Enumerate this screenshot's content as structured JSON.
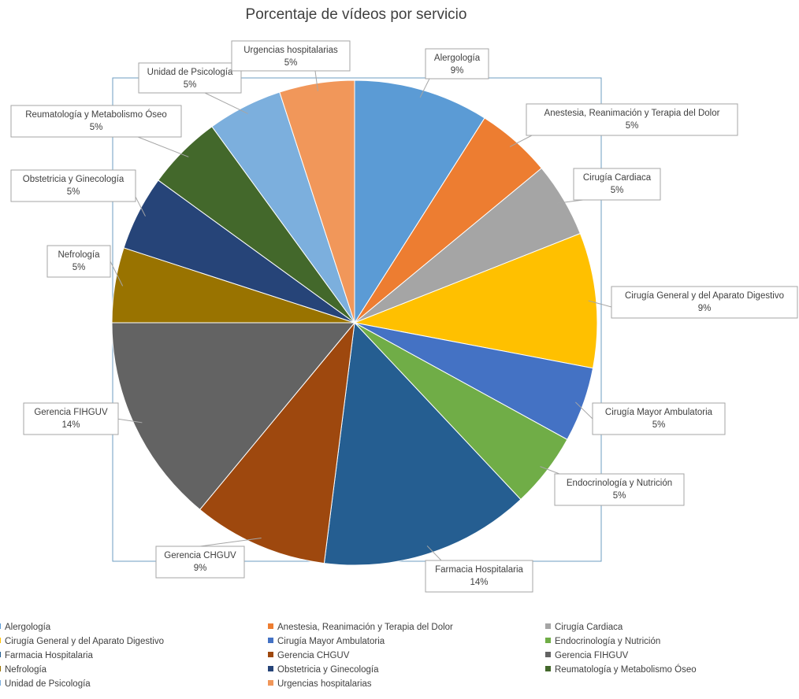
{
  "chart_data": {
    "type": "pie",
    "title": "Porcentaje de vídeos por servicio",
    "slices": [
      {
        "label": "Alergología",
        "percent_label": "9%",
        "value": 9,
        "color": "#5b9bd5"
      },
      {
        "label": "Anestesia, Reanimación y Terapia del Dolor",
        "percent_label": "5%",
        "value": 5,
        "color": "#ed7d31"
      },
      {
        "label": "Cirugía Cardiaca",
        "percent_label": "5%",
        "value": 5,
        "color": "#a5a5a5"
      },
      {
        "label": "Cirugía General y del Aparato Digestivo",
        "percent_label": "9%",
        "value": 9,
        "color": "#ffc000"
      },
      {
        "label": "Cirugía Mayor Ambulatoria",
        "percent_label": "5%",
        "value": 5,
        "color": "#4472c4"
      },
      {
        "label": "Endocrinología y Nutrición",
        "percent_label": "5%",
        "value": 5,
        "color": "#70ad47"
      },
      {
        "label": "Farmacia Hospitalaria",
        "percent_label": "14%",
        "value": 14,
        "color": "#255e91"
      },
      {
        "label": "Gerencia CHGUV",
        "percent_label": "9%",
        "value": 9,
        "color": "#9e480e"
      },
      {
        "label": "Gerencia FIHGUV",
        "percent_label": "14%",
        "value": 14,
        "color": "#636363"
      },
      {
        "label": "Nefrología",
        "percent_label": "5%",
        "value": 5,
        "color": "#997300"
      },
      {
        "label": "Obstetricia y Ginecología",
        "percent_label": "5%",
        "value": 5,
        "color": "#264478"
      },
      {
        "label": "Reumatología y Metabolismo Óseo",
        "percent_label": "5%",
        "value": 5,
        "color": "#43682b"
      },
      {
        "label": "Unidad de Psicología",
        "percent_label": "5%",
        "value": 5,
        "color": "#7cafdd"
      },
      {
        "label": "Urgencias hospitalarias",
        "percent_label": "5%",
        "value": 5,
        "color": "#f1975a"
      }
    ],
    "legend_position": "bottom"
  }
}
